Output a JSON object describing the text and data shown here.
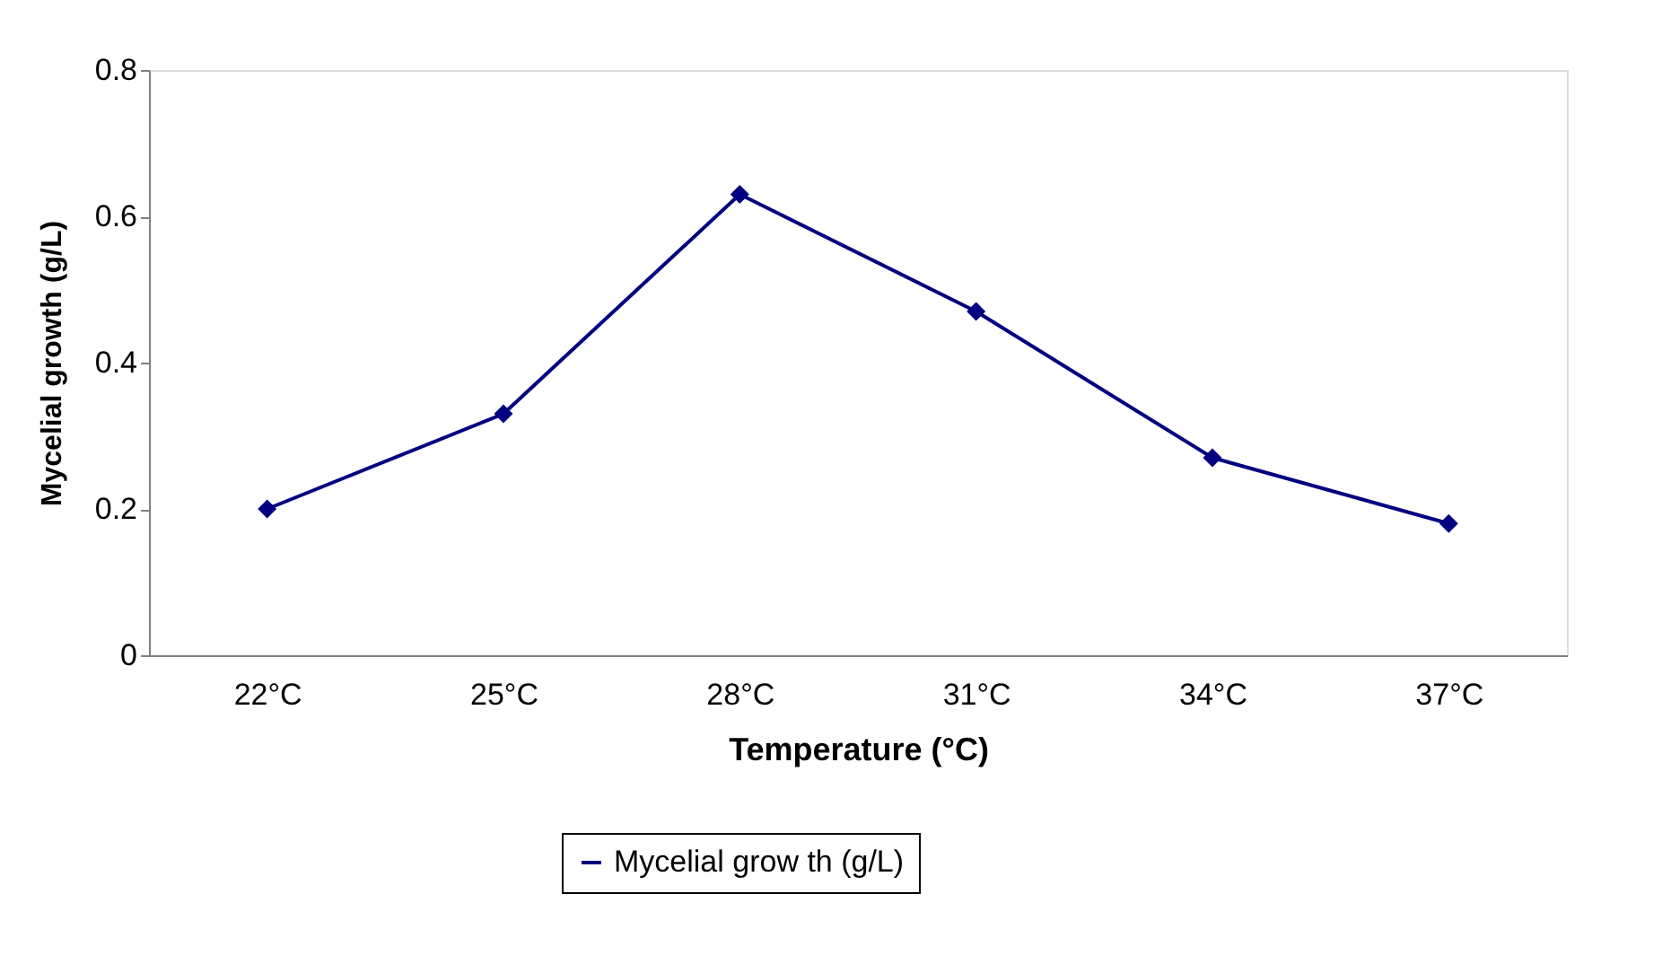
{
  "chart_data": {
    "type": "line",
    "xlabel": "Temperature (°C)",
    "ylabel": "Mycelial growth (g/L)",
    "categories": [
      "22°C",
      "25°C",
      "28°C",
      "31°C",
      "34°C",
      "37°C"
    ],
    "series": [
      {
        "name": "Mycelial grow th (g/L)",
        "color": "#000080",
        "values": [
          0.2,
          0.33,
          0.63,
          0.47,
          0.27,
          0.18
        ]
      }
    ],
    "ylim": [
      0,
      0.8
    ],
    "yticks": [
      0,
      0.2,
      0.4,
      0.6,
      0.8
    ],
    "grid": false,
    "legend": "bottom",
    "marker": "diamond",
    "line_style": "solid"
  }
}
